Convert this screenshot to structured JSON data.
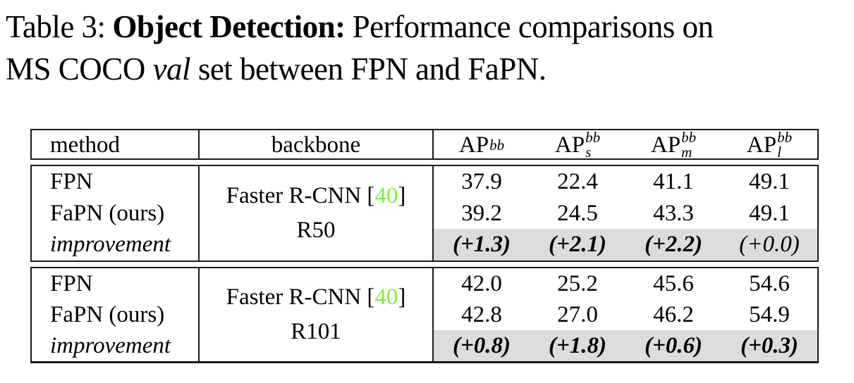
{
  "caption": {
    "line1_normal1": "Table 3:",
    "line1_bold": "Object Detection:",
    "line1_normal2": "Performance comparisons on",
    "line2_normal1": "MS COCO",
    "line2_italic": "val",
    "line2_normal2": "set between FPN and FaPN."
  },
  "colors": {
    "citation_green": "#7df03d",
    "improvement_row_bg": "#dcdcdc",
    "rule_black": "#1a1a1a"
  },
  "table": {
    "headers": {
      "method": "method",
      "backbone": "backbone",
      "ap_columns": [
        {
          "base": "AP",
          "sup": "bb",
          "sub": ""
        },
        {
          "base": "AP",
          "sup": "bb",
          "sub": "s"
        },
        {
          "base": "AP",
          "sup": "bb",
          "sub": "m"
        },
        {
          "base": "AP",
          "sup": "bb",
          "sub": "l"
        }
      ]
    },
    "blocks": [
      {
        "methods": [
          "FPN",
          "FaPN (ours)",
          "improvement"
        ],
        "backbone": {
          "line1_pre": "Faster R-CNN [",
          "cite": "40",
          "line1_post": "]",
          "line2": "R50"
        },
        "rows": [
          {
            "values": [
              "37.9",
              "22.4",
              "41.1",
              "49.1"
            ]
          },
          {
            "values": [
              "39.2",
              "24.5",
              "43.3",
              "49.1"
            ]
          },
          {
            "values": [
              "(+1.3)",
              "(+2.1)",
              "(+2.2)",
              "(+0.0)"
            ]
          }
        ]
      },
      {
        "methods": [
          "FPN",
          "FaPN (ours)",
          "improvement"
        ],
        "backbone": {
          "line1_pre": "Faster R-CNN [",
          "cite": "40",
          "line1_post": "]",
          "line2": "R101"
        },
        "rows": [
          {
            "values": [
              "42.0",
              "25.2",
              "45.6",
              "54.6"
            ]
          },
          {
            "values": [
              "42.8",
              "27.0",
              "46.2",
              "54.9"
            ]
          },
          {
            "values": [
              "(+0.8)",
              "(+1.8)",
              "(+0.6)",
              "(+0.3)"
            ]
          }
        ]
      }
    ]
  }
}
